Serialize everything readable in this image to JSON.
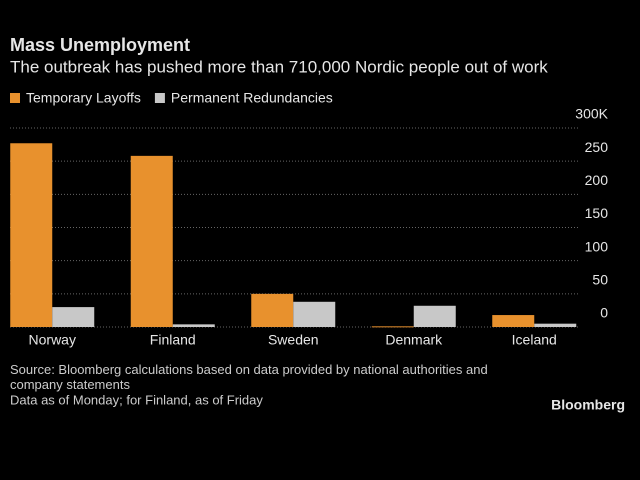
{
  "chart_data": {
    "type": "bar",
    "title": "Mass Unemployment",
    "subtitle": "The outbreak has pushed more than 710,000 Nordic people out of work",
    "categories": [
      "Norway",
      "Finland",
      "Sweden",
      "Denmark",
      "Iceland"
    ],
    "series": [
      {
        "name": "Temporary Layoffs",
        "color": "#e8912d",
        "values": [
          277,
          258,
          50,
          1,
          18
        ]
      },
      {
        "name": "Permanent Redundancies",
        "color": "#c8c8c8",
        "values": [
          30,
          4,
          38,
          32,
          5
        ]
      }
    ],
    "ylim": [
      0,
      300
    ],
    "yticks": [
      0,
      50,
      100,
      150,
      200,
      250,
      {
        "value": 300,
        "label": "300K"
      }
    ],
    "grid": true,
    "source": "Source: Bloomberg calculations based on data provided by national authorities and company statements",
    "note": "Data as of Monday; for Finland, as of Friday",
    "brand": "Bloomberg"
  }
}
